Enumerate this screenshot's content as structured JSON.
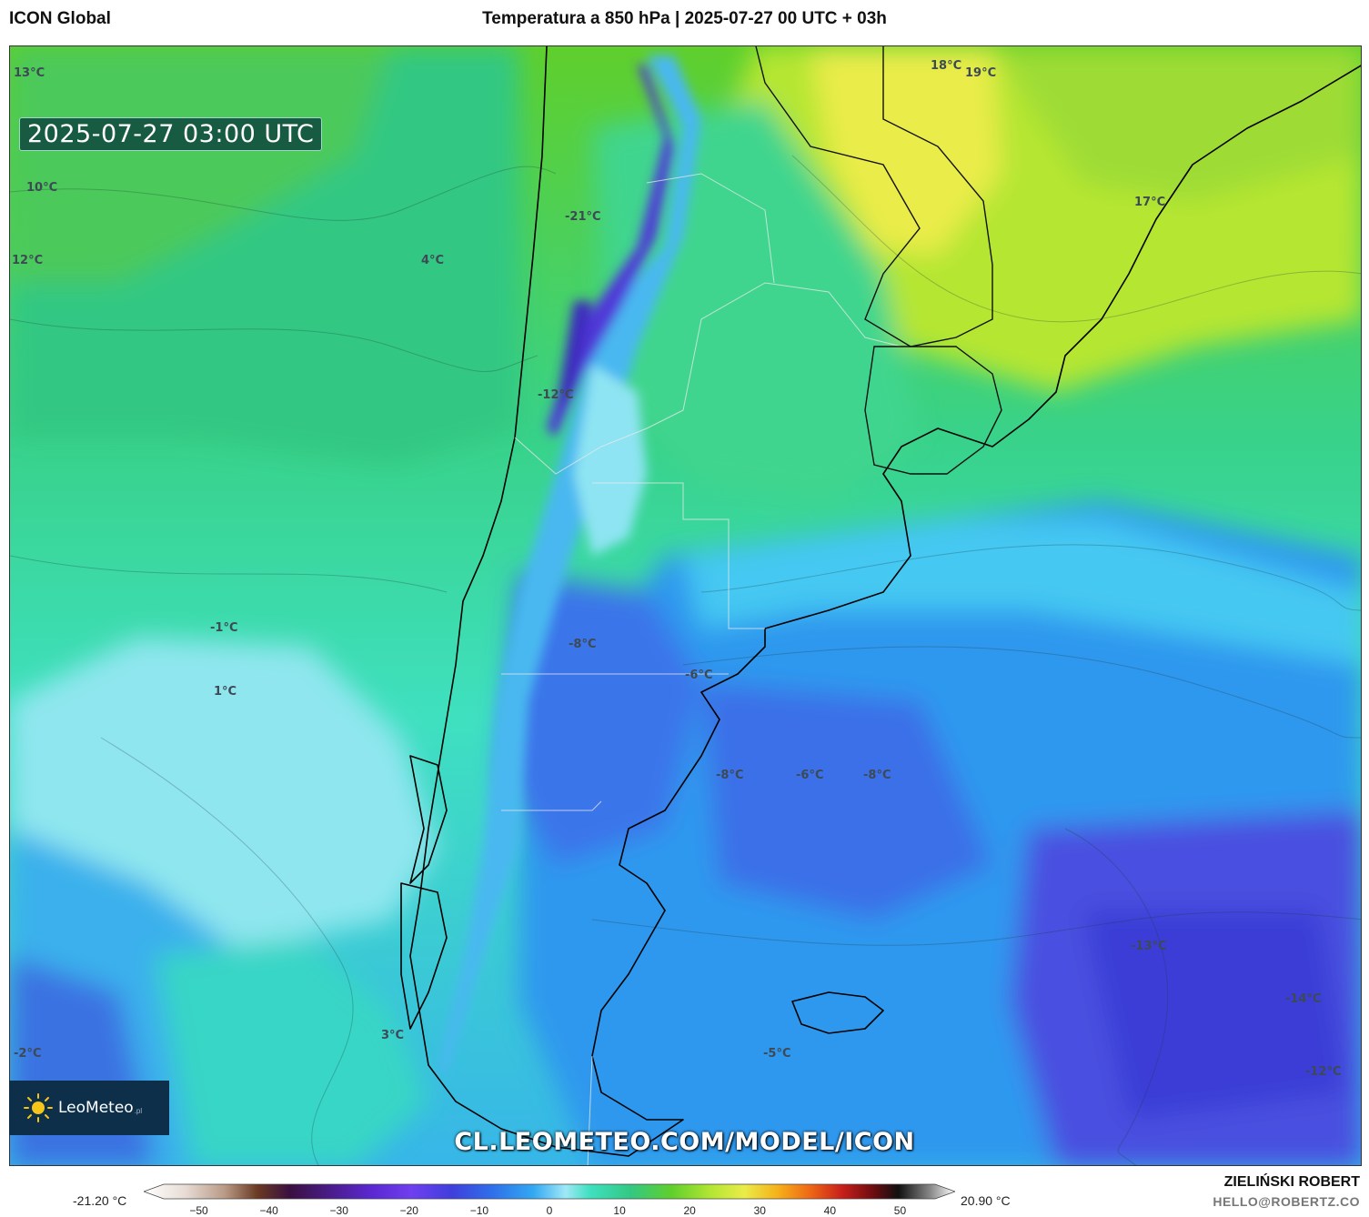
{
  "header": {
    "model": "ICON Global",
    "title": "Temperatura a 850 hPa | 2025-07-27 00 UTC + 03h"
  },
  "map": {
    "valid_time": "2025-07-27 03:00 UTC",
    "labels": [
      {
        "text": "13°C"
      },
      {
        "text": "10°C"
      },
      {
        "text": "12°C"
      },
      {
        "text": "4°C"
      },
      {
        "text": "-21°C"
      },
      {
        "text": "-12°C"
      },
      {
        "text": "18°C"
      },
      {
        "text": "19°C"
      },
      {
        "text": "17°C"
      },
      {
        "text": "-1°C"
      },
      {
        "text": "1°C"
      },
      {
        "text": "-8°C"
      },
      {
        "text": "-6°C"
      },
      {
        "text": "-8°C"
      },
      {
        "text": "-6°C"
      },
      {
        "text": "-8°C"
      },
      {
        "text": "-13°C"
      },
      {
        "text": "-14°C"
      },
      {
        "text": "-12°C"
      },
      {
        "text": "3°C"
      },
      {
        "text": "-5°C"
      },
      {
        "text": "-2°C"
      }
    ]
  },
  "branding": {
    "logo_text": "LeoMeteo",
    "logo_sub": ".pl",
    "watermark": "CL.LEOMETEO.COM/MODEL/ICON",
    "author": "ZIELIŃSKI ROBERT",
    "email": "HELLO@ROBERTZ.CO"
  },
  "legend": {
    "min_label": "-21.20 °C",
    "max_label": "20.90 °C",
    "ticks": [
      "−50",
      "−40",
      "−30",
      "−20",
      "−10",
      "0",
      "10",
      "20",
      "30",
      "40",
      "50"
    ],
    "range": [
      -55,
      55
    ]
  },
  "colors": {
    "frame": "#333333",
    "logo_bg": "#0d2f4a"
  }
}
